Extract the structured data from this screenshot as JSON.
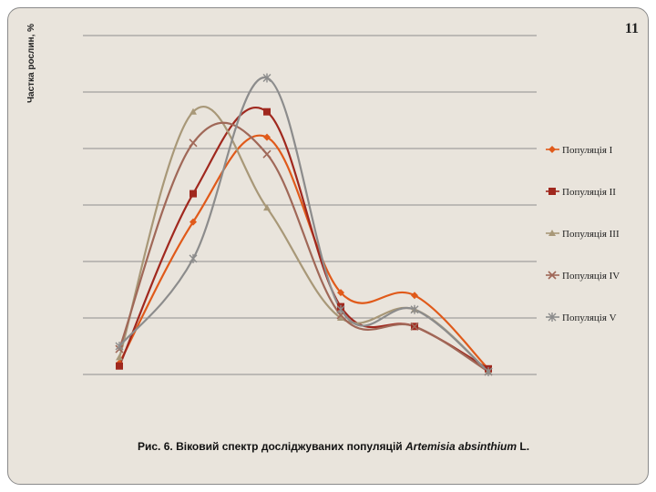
{
  "page_number": "11",
  "caption": {
    "prefix": "Рис. 6. Віковий спектр досліджуваних популяцій",
    "species": "Artemisia absinthium",
    "suffix": "L."
  },
  "chart_data": {
    "type": "line",
    "ylabel": "Частка рослин, %",
    "x": [
      1,
      2,
      3,
      4,
      5,
      6
    ],
    "ylim": [
      0,
      60
    ],
    "grid": true,
    "legend_position": "right",
    "series": [
      {
        "name": "Популяція I",
        "color": "#e05a1a",
        "marker": "diamond",
        "values": [
          2,
          27,
          42,
          14.5,
          14,
          1
        ]
      },
      {
        "name": "Популяція II",
        "color": "#a0281e",
        "marker": "square",
        "values": [
          1.5,
          32,
          46.5,
          12,
          8.5,
          1
        ]
      },
      {
        "name": "Популяція III",
        "color": "#a89878",
        "marker": "triangle",
        "values": [
          3,
          46.5,
          29.5,
          10,
          11.5,
          0.5
        ]
      },
      {
        "name": "Популяція IV",
        "color": "#a06858",
        "marker": "x",
        "values": [
          4.5,
          41,
          39,
          10.5,
          8.5,
          0.5
        ]
      },
      {
        "name": "Популяція V",
        "color": "#8c8c8c",
        "marker": "star",
        "values": [
          5,
          20.5,
          52.5,
          11.5,
          11.5,
          0.5
        ]
      }
    ]
  }
}
